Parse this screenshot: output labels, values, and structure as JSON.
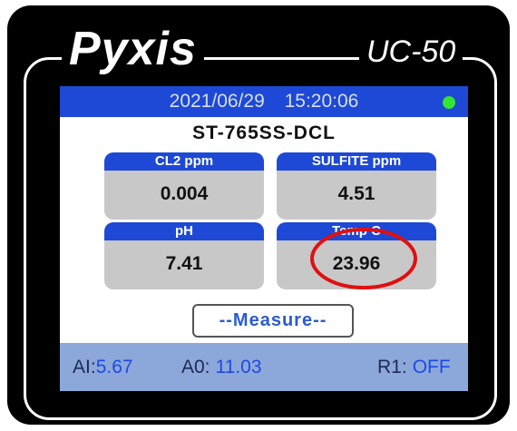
{
  "brand": "Pyxis",
  "model": "UC-50",
  "header": {
    "date": "2021/06/29",
    "time": "15:20:06"
  },
  "device": "ST-765SS-DCL",
  "tiles": [
    {
      "label": "CL2 ppm",
      "value": "0.004"
    },
    {
      "label": "SULFITE ppm",
      "value": "4.51"
    },
    {
      "label": "pH",
      "value": "7.41"
    },
    {
      "label": "Temp C",
      "value": "23.96"
    }
  ],
  "button": "--Measure--",
  "footer": [
    {
      "label": "AI:",
      "value": "5.67"
    },
    {
      "label": "A0:",
      "value": "11.03"
    },
    {
      "label": "R1:",
      "value": "OFF"
    }
  ]
}
